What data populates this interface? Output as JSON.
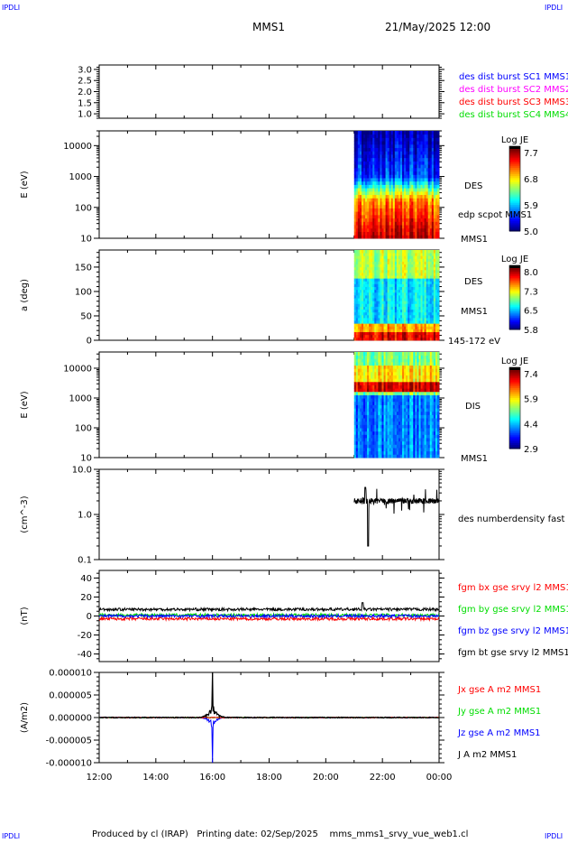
{
  "corners": {
    "tl": "IPDLI",
    "tr": "IPDLI",
    "bl": "IPDLI",
    "br": "IPDLI"
  },
  "header": {
    "spacecraft": "MMS1",
    "datetime": "21/May/2025 12:00"
  },
  "footer": {
    "text": "Produced by cl (IRAP)   Printing date: 02/Sep/2025    mms_mms1_srvy_vue_web1.cl"
  },
  "colors": {
    "bx": "#ff0000",
    "by": "#00dd00",
    "bz": "#0000ff",
    "bt": "#000000",
    "mms2": "#ff00ff"
  },
  "chart_data": [
    {
      "type": "line",
      "name": "burst-availability",
      "ylim": [
        0.8,
        3.2
      ],
      "yticks": [
        "3.0",
        "2.5",
        "2.0",
        "1.5",
        "1.0"
      ],
      "legend": [
        {
          "text": "des dist burst SC1 MMS1",
          "color": "#0000ff"
        },
        {
          "text": "des dist burst SC2 MMS2",
          "color": "#ff00ff"
        },
        {
          "text": "des dist burst SC3 MMS3",
          "color": "#ff0000"
        },
        {
          "text": "des dist burst SC4 MMS4",
          "color": "#00dd00"
        }
      ]
    },
    {
      "type": "heatmap",
      "name": "des-energy",
      "ylabel": "E (eV)",
      "yscale": "log",
      "ylim": [
        10,
        30000
      ],
      "yticks": [
        "10000",
        "1000",
        "100",
        "10"
      ],
      "data_start_hour": 21,
      "colorbar": {
        "title": "Log JE",
        "ticks": [
          "7.7",
          "6.8",
          "5.9",
          "5.0"
        ],
        "range": [
          5.0,
          7.7
        ]
      },
      "labels": [
        "DES",
        "edp scpot MMS1",
        "MMS1"
      ]
    },
    {
      "type": "heatmap",
      "name": "des-pitch-angle",
      "ylabel": "a (deg)",
      "ylim": [
        0,
        185
      ],
      "yticks": [
        "150",
        "100",
        "50",
        "0"
      ],
      "data_start_hour": 21,
      "colorbar": {
        "title": "Log JE",
        "ticks": [
          "8.0",
          "7.3",
          "6.5",
          "5.8"
        ],
        "range": [
          5.8,
          8.0
        ]
      },
      "labels": [
        "DES",
        "MMS1",
        "145-172 eV"
      ]
    },
    {
      "type": "heatmap",
      "name": "dis-energy",
      "ylabel": "E (eV)",
      "yscale": "log",
      "ylim": [
        10,
        35000
      ],
      "yticks": [
        "10000",
        "1000",
        "100",
        "10"
      ],
      "data_start_hour": 21,
      "colorbar": {
        "title": "Log JE",
        "ticks": [
          "7.4",
          "5.9",
          "4.4",
          "2.9"
        ],
        "range": [
          2.9,
          7.4
        ]
      },
      "labels": [
        "DIS",
        "MMS1"
      ]
    },
    {
      "type": "line",
      "name": "density",
      "ylabel": "(cm^-3)",
      "yscale": "log",
      "ylim": [
        0.1,
        10
      ],
      "yticks": [
        "10.0",
        "1.0",
        "0.1"
      ],
      "series": [
        {
          "name": "des numberdensity fast MMS1",
          "start_hour": 21,
          "typical": 2.0,
          "min": 0.2
        }
      ]
    },
    {
      "type": "line",
      "name": "magnetic-field",
      "ylabel": "(nT)",
      "ylim": [
        -48,
        48
      ],
      "yticks": [
        "40",
        "20",
        "0",
        "-20",
        "-40"
      ],
      "series": [
        {
          "name": "fgm bx gse srvy l2 MMS1",
          "typical": -3
        },
        {
          "name": "fgm by gse srvy l2 MMS1",
          "typical": 1
        },
        {
          "name": "fgm bz gse srvy l2 MMS1",
          "typical": 0
        },
        {
          "name": "fgm bt gse srvy l2 MMS1",
          "typical": 7
        }
      ]
    },
    {
      "type": "line",
      "name": "current-density",
      "ylabel": "(A/m2)",
      "ylim": [
        -1e-05,
        1e-05
      ],
      "yticks": [
        "0.000010",
        "0.000005",
        "0.000000",
        "-0.000005",
        "-0.000010"
      ],
      "series": [
        {
          "name": "Jx gse A m2 MMS1"
        },
        {
          "name": "Jy gse A m2 MMS1"
        },
        {
          "name": "Jz gse A m2 MMS1",
          "spike_hour": 16,
          "spike_value": -1e-05
        },
        {
          "name": "J A m2 MMS1",
          "spike_hour": 16,
          "spike_value": 1e-05
        }
      ]
    }
  ],
  "xaxis": {
    "range_hours": [
      12,
      24
    ],
    "ticks": [
      "12:00",
      "14:00",
      "16:00",
      "18:00",
      "20:00",
      "22:00",
      "00:00"
    ]
  }
}
